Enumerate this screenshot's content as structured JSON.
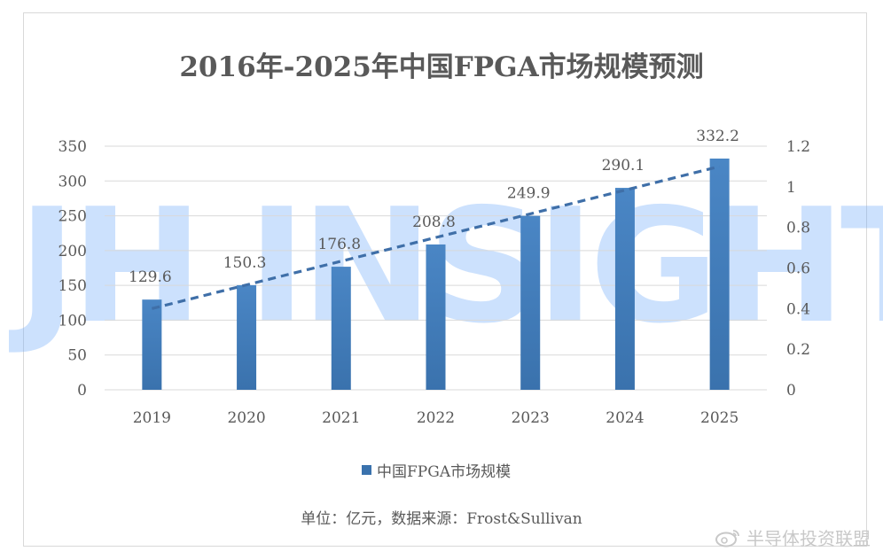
{
  "title": "2016年-2025年中国FPGA市场规模预测",
  "legend_label": "中国FPGA市场规模",
  "source_note": "单位：亿元，数据来源：Frost&Sullivan",
  "brand_watermark": "JH INSIGHTS",
  "corner_watermark": "半导体投资联盟",
  "colors": {
    "bar": "#3a72ad",
    "trendline": "#3f6fa8",
    "grid": "#d9d9d9",
    "text": "#595959"
  },
  "chart_data": {
    "type": "bar",
    "categories": [
      "2019",
      "2020",
      "2021",
      "2022",
      "2023",
      "2024",
      "2025"
    ],
    "series": [
      {
        "name": "中国FPGA市场规模",
        "values": [
          129.6,
          150.3,
          176.8,
          208.8,
          249.9,
          290.1,
          332.2
        ]
      }
    ],
    "data_labels": [
      "129.6",
      "150.3",
      "176.8",
      "208.8",
      "249.9",
      "290.1",
      "332.2"
    ],
    "ylim": [
      0,
      350
    ],
    "yticks": [
      "0",
      "50",
      "100",
      "150",
      "200",
      "250",
      "300",
      "350"
    ],
    "y2lim": [
      0,
      1.2
    ],
    "y2ticks": [
      "0",
      "0.2",
      "0.4",
      "0.6",
      "0.8",
      "1",
      "1.2"
    ],
    "trendline": {
      "style": "dashed",
      "axis": "secondary",
      "start": 0.4,
      "end": 1.1
    },
    "grid": true,
    "legend_position": "bottom"
  }
}
